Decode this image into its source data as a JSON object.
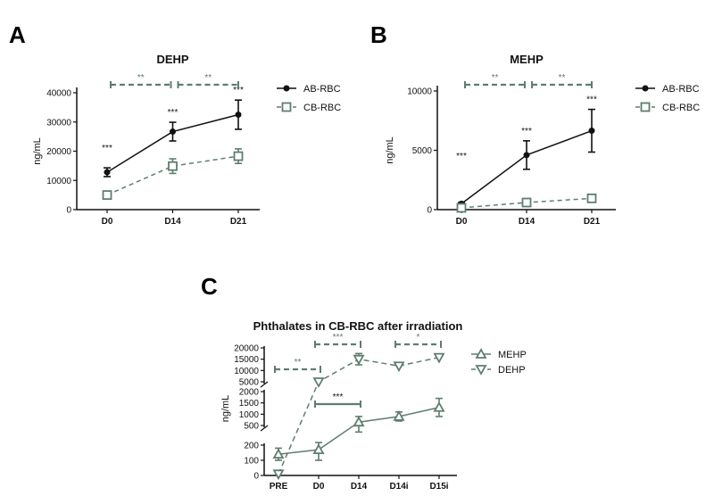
{
  "colors": {
    "ab": "#111111",
    "cb": "#5e7d6e",
    "axis": "#111111"
  },
  "chart_data": [
    {
      "panel": "A",
      "type": "line",
      "title": "DEHP",
      "ylabel": "ng/mL",
      "xlabel": "",
      "categories": [
        "D0",
        "D14",
        "D21"
      ],
      "ylim": [
        0,
        40000
      ],
      "yticks": [
        "0",
        "10000",
        "20000",
        "30000",
        "40000"
      ],
      "series": [
        {
          "name": "AB-RBC",
          "values": [
            12800,
            26700,
            32500
          ],
          "errors": [
            1500,
            3200,
            5000
          ]
        },
        {
          "name": "CB-RBC",
          "values": [
            5000,
            14900,
            18300
          ],
          "errors": [
            1000,
            2500,
            2500
          ]
        }
      ],
      "point_stars": [
        "***",
        "***",
        "***"
      ],
      "brackets": [
        {
          "from": "D0",
          "to": "D14",
          "label": "**"
        },
        {
          "from": "D14",
          "to": "D21",
          "label": "**"
        }
      ],
      "legend": "right"
    },
    {
      "panel": "B",
      "type": "line",
      "title": "MEHP",
      "ylabel": "ng/mL",
      "xlabel": "",
      "categories": [
        "D0",
        "D14",
        "D21"
      ],
      "ylim": [
        0,
        10000
      ],
      "yticks": [
        "0",
        "5000",
        "10000"
      ],
      "series": [
        {
          "name": "AB-RBC",
          "values": [
            500,
            4600,
            6650
          ],
          "errors": [
            100,
            1200,
            1800
          ]
        },
        {
          "name": "CB-RBC",
          "values": [
            150,
            600,
            950
          ],
          "errors": [
            50,
            100,
            200
          ]
        }
      ],
      "point_stars": [
        "***",
        "***",
        "***"
      ],
      "brackets": [
        {
          "from": "D0",
          "to": "D14",
          "label": "**"
        },
        {
          "from": "D14",
          "to": "D21",
          "label": "**"
        }
      ],
      "legend": "right"
    },
    {
      "panel": "C",
      "type": "line",
      "title": "Phthalates in CB-RBC after irradiation",
      "ylabel": "ng/mL",
      "xlabel": "",
      "categories": [
        "PRE",
        "D0",
        "D14",
        "D14i",
        "D15i"
      ],
      "axis_segments": [
        {
          "range": [
            5000,
            20000
          ],
          "ticks": [
            "5000",
            "10000",
            "15000",
            "20000"
          ]
        },
        {
          "range": [
            500,
            2000
          ],
          "ticks": [
            "500",
            "1000",
            "1500",
            "2000"
          ]
        },
        {
          "range": [
            0,
            200
          ],
          "ticks": [
            "0",
            "100",
            "200"
          ]
        }
      ],
      "series": [
        {
          "name": "MEHP",
          "marker": "triangle-up",
          "values": [
            140,
            170,
            650,
            900,
            1300
          ],
          "errors": [
            40,
            70,
            250,
            200,
            400
          ]
        },
        {
          "name": "DEHP",
          "marker": "triangle-down",
          "values": [
            10,
            5000,
            15000,
            12000,
            15800
          ],
          "errors": [
            0,
            0,
            2500,
            0,
            0
          ]
        }
      ],
      "brackets": [
        {
          "from": "PRE",
          "to": "D0",
          "label": "**",
          "style": "dashed"
        },
        {
          "from": "D0",
          "to": "D14",
          "label": "***",
          "style": "dashed"
        },
        {
          "from": "D14i",
          "to": "D15i",
          "label": "*",
          "style": "dashed"
        },
        {
          "from": "D0",
          "to": "D14",
          "label": "***",
          "style": "solid"
        }
      ],
      "legend": "right"
    }
  ]
}
